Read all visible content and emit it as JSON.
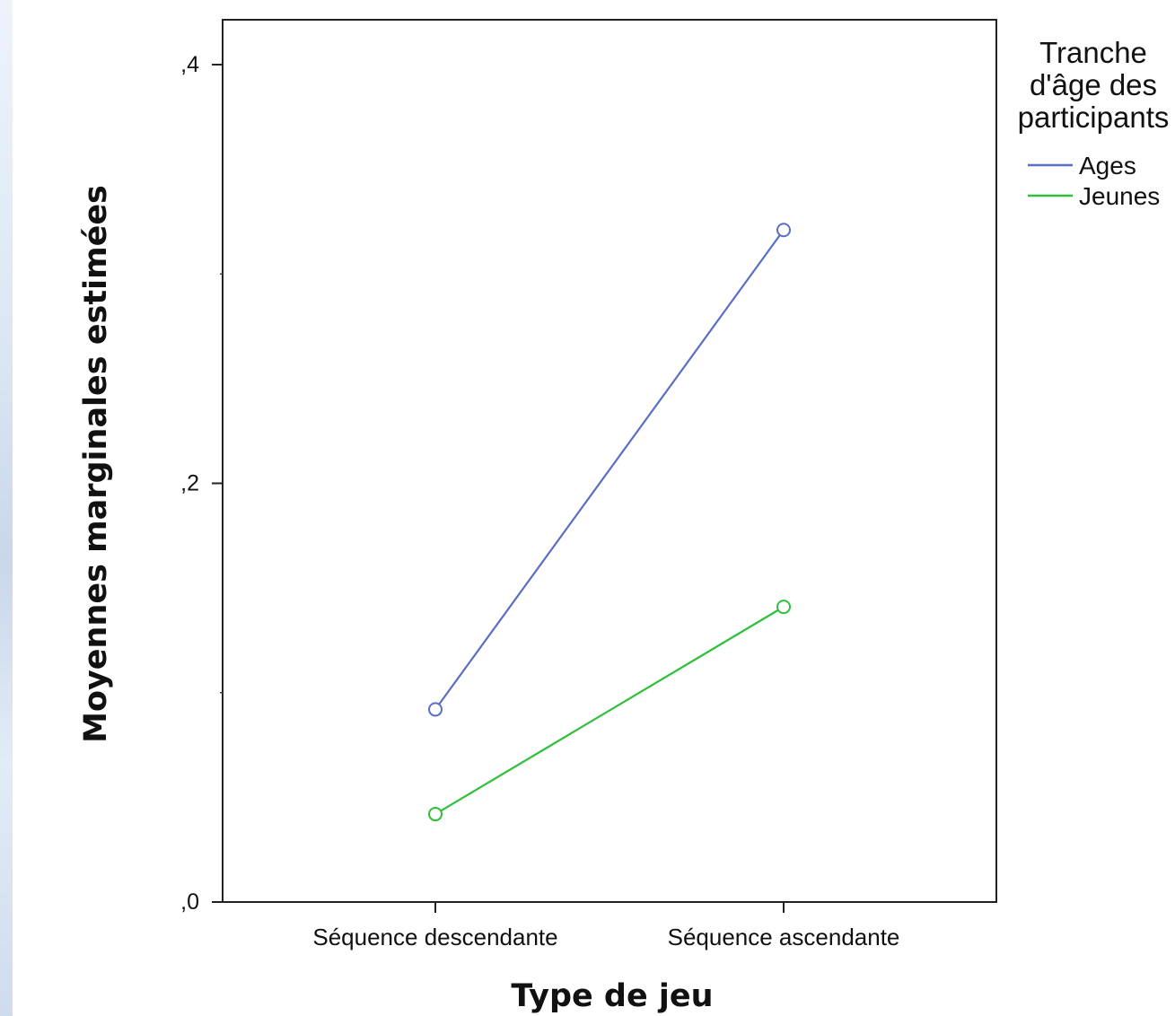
{
  "chart_data": {
    "type": "line",
    "xlabel": "Type de jeu",
    "ylabel": "Moyennes marginales estimées",
    "categories": [
      "Séquence descendante",
      "Séquence ascendante"
    ],
    "ylim": [
      0,
      0.42
    ],
    "y_ticks": [
      {
        "value": 0,
        "label": ",0"
      },
      {
        "value": 0.2,
        "label": ",2"
      },
      {
        "value": 0.4,
        "label": ",4"
      }
    ],
    "y_minor_ticks": [
      0.1,
      0.3
    ],
    "legend": {
      "title_lines": [
        "Tranche",
        "d'âge des",
        "participants"
      ],
      "placement": "right"
    },
    "series": [
      {
        "name": "Ages",
        "color": "#5a6fc4",
        "values": [
          0.092,
          0.321
        ]
      },
      {
        "name": "Jeunes",
        "color": "#2fbf3c",
        "values": [
          0.042,
          0.141
        ]
      }
    ],
    "grid": false,
    "marker": "open-circle"
  }
}
